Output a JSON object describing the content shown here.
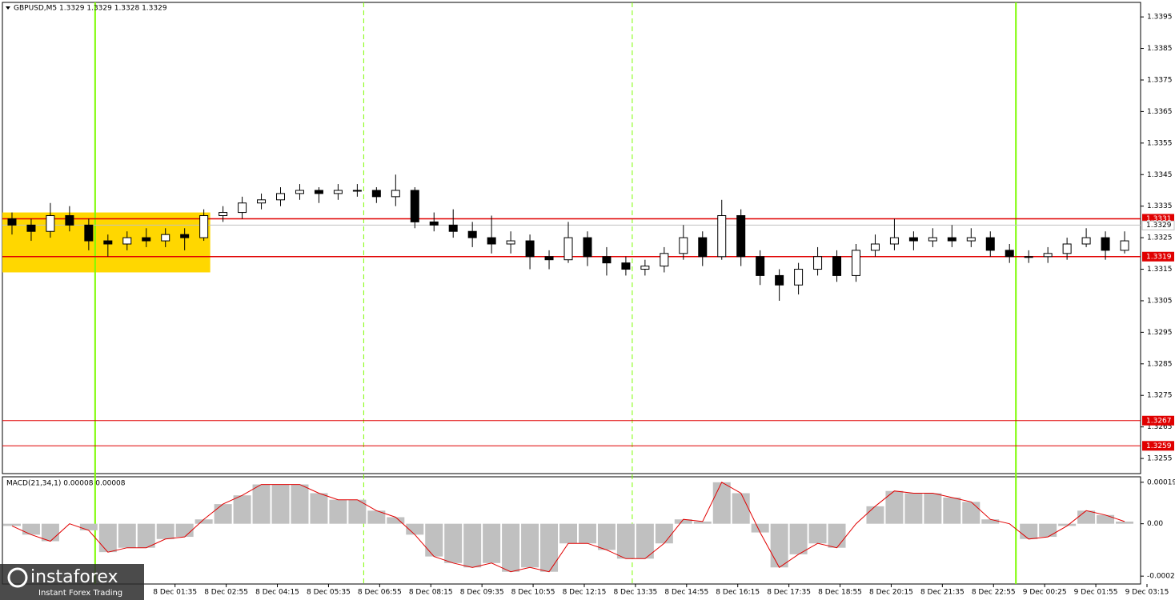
{
  "watermark": {
    "brand": "instaforex",
    "tagline": "Instant Forex Trading"
  },
  "chart_data": [
    {
      "type": "candlestick",
      "title": "GBPUSD,M5  1.3329 1.3329 1.3328 1.3329",
      "x": [
        3,
        9,
        15,
        21,
        27,
        33,
        39,
        45,
        51,
        57,
        63,
        69,
        75,
        81,
        87,
        93,
        99,
        105,
        111,
        117,
        123,
        129,
        135,
        141,
        147,
        153,
        159,
        165,
        171,
        177,
        183,
        189,
        195,
        201,
        207,
        213,
        219,
        225,
        231,
        237,
        243,
        249,
        255,
        261,
        267,
        273,
        279,
        285,
        291,
        297,
        303,
        309,
        315,
        321,
        327,
        333,
        339,
        345,
        351
      ],
      "open": [
        1.3331,
        1.3329,
        1.3327,
        1.3332,
        1.3329,
        1.3324,
        1.3323,
        1.3325,
        1.3324,
        1.3326,
        1.3325,
        1.3332,
        1.3333,
        1.3336,
        1.3337,
        1.3339,
        1.334,
        1.3339,
        1.334,
        1.334,
        1.3338,
        1.334,
        1.333,
        1.3329,
        1.3327,
        1.3325,
        1.3323,
        1.3324,
        1.3319,
        1.3318,
        1.3325,
        1.3319,
        1.3317,
        1.3315,
        1.3316,
        1.332,
        1.3325,
        1.3319,
        1.3332,
        1.3319,
        1.3313,
        1.331,
        1.3315,
        1.3319,
        1.3313,
        1.3321,
        1.3323,
        1.3325,
        1.3324,
        1.3325,
        1.3324,
        1.3325,
        1.3321,
        1.3319,
        1.3319,
        1.332,
        1.3323,
        1.3325,
        1.3321
      ],
      "high": [
        1.3333,
        1.3331,
        1.3336,
        1.3335,
        1.3331,
        1.3326,
        1.3327,
        1.3328,
        1.3328,
        1.3328,
        1.3334,
        1.3335,
        1.3338,
        1.3339,
        1.3341,
        1.3342,
        1.3341,
        1.3342,
        1.3342,
        1.3341,
        1.3345,
        1.3341,
        1.3333,
        1.3334,
        1.333,
        1.3332,
        1.3327,
        1.3326,
        1.3321,
        1.333,
        1.3327,
        1.3322,
        1.3319,
        1.3318,
        1.3322,
        1.3329,
        1.3327,
        1.3337,
        1.3334,
        1.3321,
        1.3315,
        1.3317,
        1.3322,
        1.3321,
        1.3323,
        1.3326,
        1.3331,
        1.3327,
        1.3328,
        1.3329,
        1.3328,
        1.3327,
        1.3323,
        1.3321,
        1.3322,
        1.3325,
        1.3328,
        1.3327,
        1.3327
      ],
      "low": [
        1.3326,
        1.3324,
        1.3325,
        1.3327,
        1.3321,
        1.3319,
        1.3321,
        1.3322,
        1.3322,
        1.3321,
        1.3324,
        1.333,
        1.3331,
        1.3334,
        1.3335,
        1.3337,
        1.3336,
        1.3337,
        1.3338,
        1.3336,
        1.3335,
        1.3328,
        1.3327,
        1.3325,
        1.3322,
        1.332,
        1.332,
        1.3315,
        1.3315,
        1.3317,
        1.3316,
        1.3313,
        1.3313,
        1.3313,
        1.3314,
        1.3318,
        1.3316,
        1.3318,
        1.3316,
        1.331,
        1.3305,
        1.3307,
        1.3313,
        1.3311,
        1.3311,
        1.3319,
        1.3321,
        1.3321,
        1.3322,
        1.3322,
        1.3322,
        1.3319,
        1.3317,
        1.3317,
        1.3317,
        1.3318,
        1.3322,
        1.3318,
        1.332
      ],
      "close": [
        1.3329,
        1.3327,
        1.3332,
        1.3329,
        1.3324,
        1.3323,
        1.3325,
        1.3324,
        1.3326,
        1.3325,
        1.3332,
        1.3333,
        1.3336,
        1.3337,
        1.3339,
        1.334,
        1.3339,
        1.334,
        1.334,
        1.3338,
        1.334,
        1.333,
        1.3329,
        1.3327,
        1.3325,
        1.3323,
        1.3324,
        1.3319,
        1.3318,
        1.3325,
        1.3319,
        1.3317,
        1.3315,
        1.3316,
        1.332,
        1.3325,
        1.3319,
        1.3332,
        1.3319,
        1.3313,
        1.331,
        1.3315,
        1.3319,
        1.3313,
        1.3321,
        1.3323,
        1.3325,
        1.3324,
        1.3325,
        1.3324,
        1.3325,
        1.3321,
        1.3319,
        1.3319,
        1.332,
        1.3323,
        1.3325,
        1.3321,
        1.3324
      ],
      "xlim": [
        0,
        356
      ],
      "xticks": [
        {
          "value": 54,
          "label": "8 Dec 01:35"
        },
        {
          "value": 70,
          "label": "8 Dec 02:55"
        },
        {
          "value": 86,
          "label": "8 Dec 04:15"
        },
        {
          "value": 102,
          "label": "8 Dec 05:35"
        },
        {
          "value": 118,
          "label": "8 Dec 06:55"
        },
        {
          "value": 134,
          "label": "8 Dec 08:15"
        },
        {
          "value": 150,
          "label": "8 Dec 09:35"
        },
        {
          "value": 166,
          "label": "8 Dec 10:55"
        },
        {
          "value": 182,
          "label": "8 Dec 12:15"
        },
        {
          "value": 198,
          "label": "8 Dec 13:35"
        },
        {
          "value": 214,
          "label": "8 Dec 14:55"
        },
        {
          "value": 230,
          "label": "8 Dec 16:15"
        },
        {
          "value": 246,
          "label": "8 Dec 17:35"
        },
        {
          "value": 262,
          "label": "8 Dec 18:55"
        },
        {
          "value": 278,
          "label": "8 Dec 20:15"
        },
        {
          "value": 294,
          "label": "8 Dec 21:35"
        },
        {
          "value": 310,
          "label": "8 Dec 22:55"
        },
        {
          "value": 326,
          "label": "9 Dec 00:25"
        },
        {
          "value": 342,
          "label": "9 Dec 01:55"
        },
        {
          "value": 358,
          "label": "9 Dec 03:15"
        }
      ],
      "ylim": [
        1.32502,
        1.33996
      ],
      "yticks": [
        1.3255,
        1.3265,
        1.3275,
        1.3285,
        1.3295,
        1.3305,
        1.3315,
        1.3325,
        1.3335,
        1.3345,
        1.3355,
        1.3365,
        1.3375,
        1.3385,
        1.3395
      ],
      "grid": false,
      "current_price": 1.3329,
      "levels": [
        1.3331,
        1.3319,
        1.3267,
        1.3259
      ],
      "level_color": "#e00000",
      "zone": {
        "x": [
          0,
          65
        ],
        "y": [
          1.3333,
          1.3314
        ],
        "color": "#ffd700"
      },
      "vlines": [
        {
          "x": 29,
          "dashed": false
        },
        {
          "x": 113,
          "dashed": true
        },
        {
          "x": 197,
          "dashed": true
        },
        {
          "x": 317,
          "dashed": false
        }
      ],
      "vline_color": "#7cfc00"
    },
    {
      "type": "macd",
      "title": "MACD(21,34,1) 0.00008 0.00008",
      "x": [
        3,
        9,
        15,
        21,
        27,
        33,
        39,
        45,
        51,
        57,
        63,
        69,
        75,
        81,
        87,
        93,
        99,
        105,
        111,
        117,
        123,
        129,
        135,
        141,
        147,
        153,
        159,
        165,
        171,
        177,
        183,
        189,
        195,
        201,
        207,
        213,
        219,
        225,
        231,
        237,
        243,
        249,
        255,
        261,
        267,
        273,
        279,
        285,
        291,
        297,
        303,
        309,
        315,
        321,
        327,
        333,
        339,
        345,
        351
      ],
      "values": [
        -1e-05,
        -5e-05,
        -8e-05,
        0,
        -3e-05,
        -0.00013,
        -0.00011,
        -0.00011,
        -7e-05,
        -6e-05,
        2e-05,
        9e-05,
        0.00013,
        0.00018,
        0.00018,
        0.00018,
        0.00014,
        0.00011,
        0.00011,
        6e-05,
        3e-05,
        -5e-05,
        -0.00015,
        -0.00018,
        -0.0002,
        -0.00018,
        -0.00022,
        -0.0002,
        -0.00022,
        -9e-05,
        -9e-05,
        -0.00012,
        -0.00016,
        -0.00016,
        -9e-05,
        2e-05,
        1e-05,
        0.00019,
        0.00014,
        -4e-05,
        -0.0002,
        -0.00014,
        -9e-05,
        -0.00011,
        0,
        8e-05,
        0.00015,
        0.00014,
        0.00014,
        0.00012,
        0.0001,
        2e-05,
        0,
        -7e-05,
        -6e-05,
        -1e-05,
        6e-05,
        4e-05,
        1e-05
      ],
      "color": "#c0c0c0",
      "line_color": "#e00000",
      "xlim": [
        0,
        356
      ],
      "ylim": [
        -0.000276,
        0.000215
      ],
      "yticks": [
        -0.00024,
        {
          "value": 0,
          "label": "0.00"
        },
        0.00019
      ]
    }
  ]
}
